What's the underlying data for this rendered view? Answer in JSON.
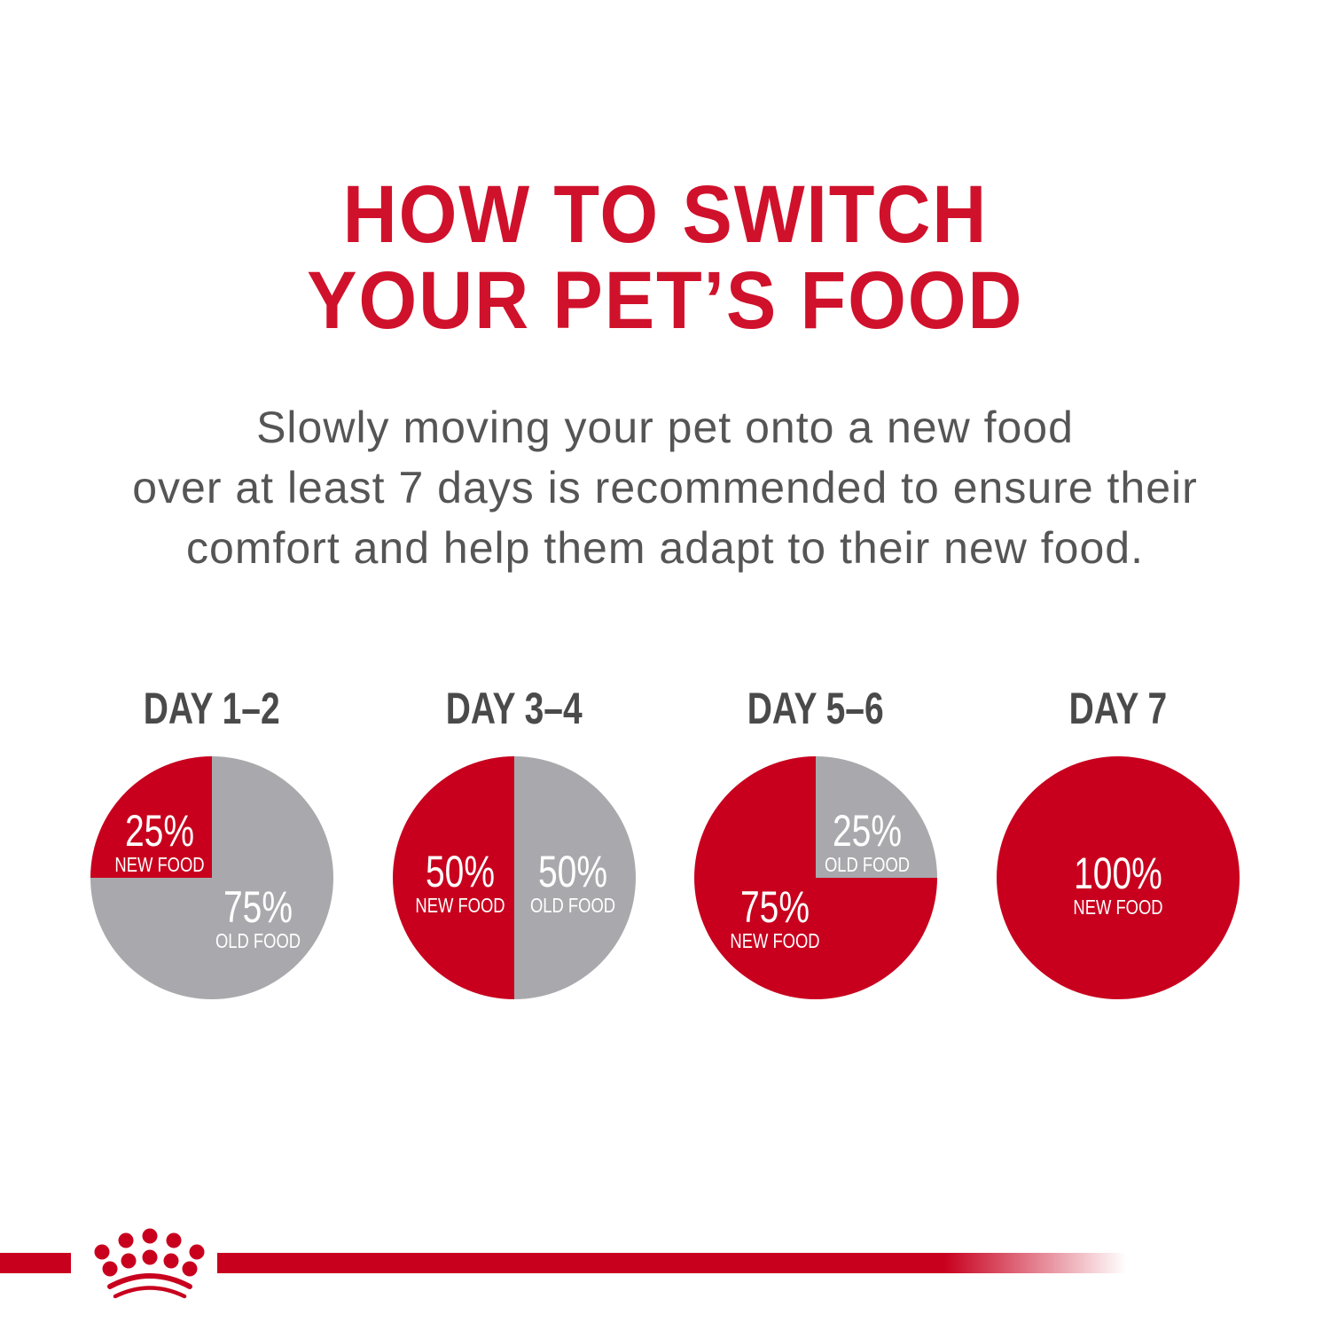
{
  "title": [
    "HOW TO SWITCH",
    "YOUR PET’S FOOD"
  ],
  "description": [
    "Slowly moving your pet onto a new food",
    "over at least 7 days is recommended to ensure their",
    "comfort and help them adapt to their new food."
  ],
  "colors": {
    "new_food": "#c8001e",
    "old_food": "#a9a9ad",
    "title": "#d0112b",
    "text": "#555555"
  },
  "logo": "royal-canin-crown",
  "chart_data": [
    {
      "type": "pie",
      "title": "DAY 1–2",
      "slices": [
        {
          "label": "NEW FOOD",
          "value": 25,
          "display": "25%"
        },
        {
          "label": "OLD FOOD",
          "value": 75,
          "display": "75%"
        }
      ]
    },
    {
      "type": "pie",
      "title": "DAY 3–4",
      "slices": [
        {
          "label": "NEW FOOD",
          "value": 50,
          "display": "50%"
        },
        {
          "label": "OLD FOOD",
          "value": 50,
          "display": "50%"
        }
      ]
    },
    {
      "type": "pie",
      "title": "DAY 5–6",
      "slices": [
        {
          "label": "NEW FOOD",
          "value": 75,
          "display": "75%"
        },
        {
          "label": "OLD FOOD",
          "value": 25,
          "display": "25%"
        }
      ]
    },
    {
      "type": "pie",
      "title": "DAY 7",
      "slices": [
        {
          "label": "NEW FOOD",
          "value": 100,
          "display": "100%"
        }
      ]
    }
  ]
}
